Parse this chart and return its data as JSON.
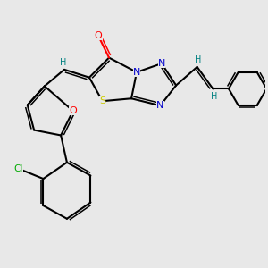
{
  "bg_color": "#e8e8e8",
  "atom_colors": {
    "O": "#ff0000",
    "N": "#0000cc",
    "S": "#cccc00",
    "Cl": "#00aa00",
    "C": "#000000",
    "H": "#008080"
  },
  "bond_color": "#000000"
}
